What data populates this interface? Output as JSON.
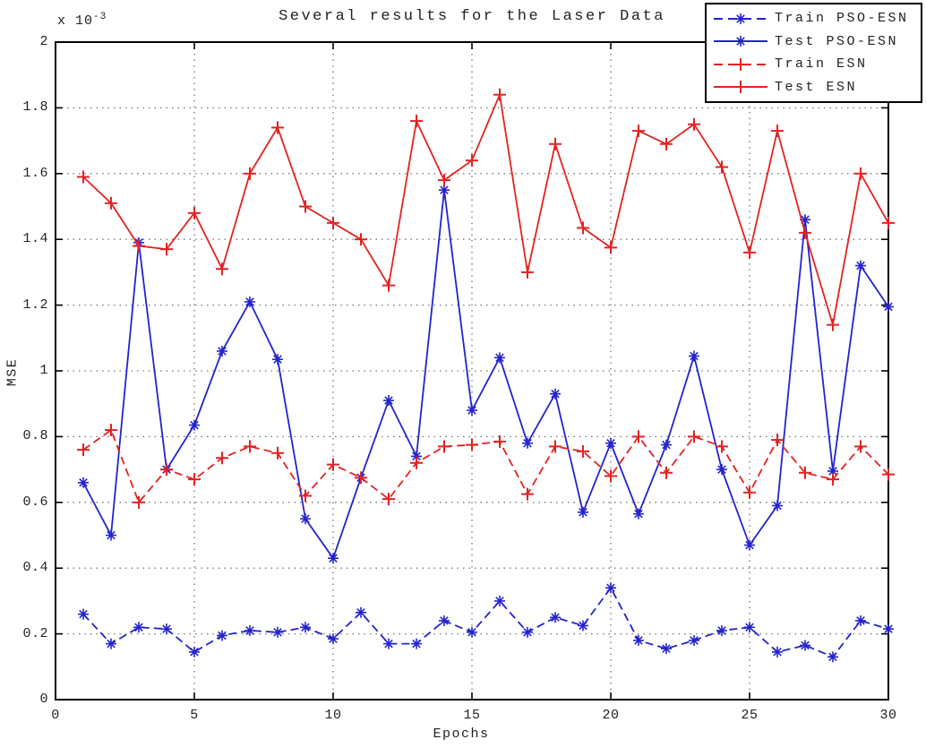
{
  "figure": {
    "y_offset_label": {
      "base": "x 10",
      "exp": "-3"
    }
  },
  "chart_data": {
    "type": "line",
    "title": "Several results for the Laser Data",
    "xlabel": "Epochs",
    "ylabel": "MSE",
    "y_unit": "x 10^-3",
    "xlim": [
      0,
      30
    ],
    "ylim": [
      0,
      2
    ],
    "x_ticks": [
      0,
      5,
      10,
      15,
      20,
      25,
      30
    ],
    "x_tick_labels": [
      "0",
      "5",
      "10",
      "15",
      "20",
      "25",
      "30"
    ],
    "y_ticks": [
      0,
      0.2,
      0.4,
      0.6,
      0.8,
      1,
      1.2,
      1.4,
      1.6,
      1.8,
      2
    ],
    "y_tick_labels": [
      "0",
      "0.2",
      "0.4",
      "0.6",
      "0.8",
      "1",
      "1.2",
      "1.4",
      "1.6",
      "1.8",
      "2"
    ],
    "grid": "dotted",
    "grid_color": "#777777",
    "axes_color": "#000000",
    "legend_position": "top-right",
    "x": [
      1,
      2,
      3,
      4,
      5,
      6,
      7,
      8,
      9,
      10,
      11,
      12,
      13,
      14,
      15,
      16,
      17,
      18,
      19,
      20,
      21,
      22,
      23,
      24,
      25,
      26,
      27,
      28,
      29,
      30
    ],
    "series": [
      {
        "name": "Train PSO-ESN",
        "color": "#2323CE",
        "line_style": "dashed",
        "marker": "asterisk",
        "values": [
          0.26,
          0.17,
          0.22,
          0.215,
          0.145,
          0.195,
          0.21,
          0.205,
          0.22,
          0.185,
          0.265,
          0.17,
          0.17,
          0.24,
          0.205,
          0.3,
          0.205,
          0.25,
          0.225,
          0.34,
          0.18,
          0.155,
          0.18,
          0.21,
          0.22,
          0.145,
          0.165,
          0.13,
          0.24,
          0.215
        ]
      },
      {
        "name": "Test PSO-ESN",
        "color": "#2323CE",
        "line_style": "solid",
        "marker": "asterisk",
        "values": [
          0.66,
          0.5,
          1.39,
          0.7,
          0.835,
          1.06,
          1.21,
          1.035,
          0.55,
          0.43,
          0.675,
          0.91,
          0.74,
          1.55,
          0.88,
          1.04,
          0.78,
          0.93,
          0.57,
          0.78,
          0.565,
          0.775,
          1.045,
          0.7,
          0.47,
          0.59,
          1.46,
          0.695,
          1.32,
          1.195
        ]
      },
      {
        "name": "Train ESN",
        "color": "#E32222",
        "line_style": "dashed",
        "marker": "plus",
        "values": [
          0.76,
          0.82,
          0.6,
          0.7,
          0.67,
          0.735,
          0.77,
          0.75,
          0.62,
          0.715,
          0.675,
          0.61,
          0.72,
          0.77,
          0.775,
          0.785,
          0.625,
          0.77,
          0.755,
          0.68,
          0.8,
          0.69,
          0.8,
          0.77,
          0.63,
          0.79,
          0.69,
          0.67,
          0.77,
          0.685
        ]
      },
      {
        "name": "Test ESN",
        "color": "#E32222",
        "line_style": "solid",
        "marker": "plus",
        "values": [
          1.59,
          1.51,
          1.38,
          1.37,
          1.48,
          1.31,
          1.6,
          1.74,
          1.5,
          1.45,
          1.4,
          1.26,
          1.76,
          1.58,
          1.64,
          1.84,
          1.3,
          1.69,
          1.435,
          1.375,
          1.73,
          1.69,
          1.75,
          1.62,
          1.36,
          1.73,
          1.42,
          1.14,
          1.6,
          1.45
        ]
      }
    ]
  }
}
